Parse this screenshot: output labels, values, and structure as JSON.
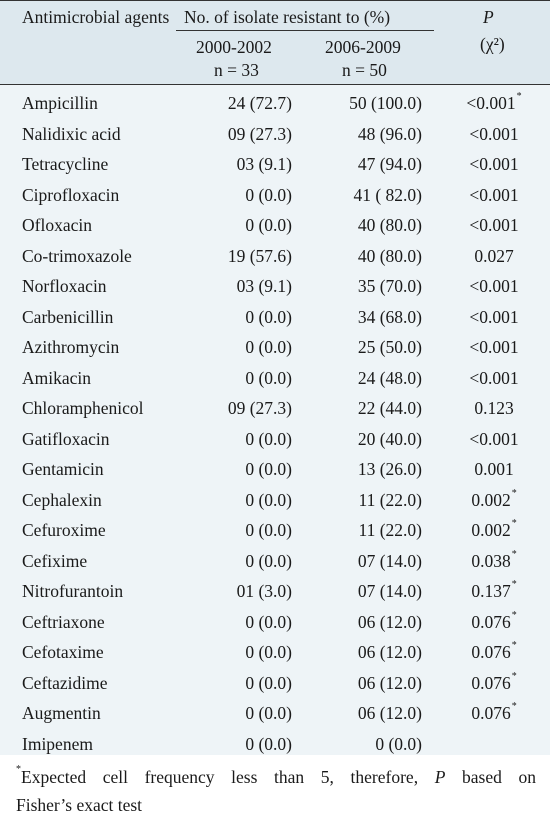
{
  "header": {
    "agent_label": "Antimicrobial agents",
    "group_label": "No. of isolate resistant to (%)",
    "p_label": "P",
    "chi_label": "(χ²)",
    "col1_period": "2000-2002",
    "col1_n": "n = 33",
    "col2_period": "2006-2009",
    "col2_n": "n = 50"
  },
  "rows": [
    {
      "agent": "Ampicillin",
      "v1": "24 (72.7)",
      "v2": "50 (100.0)",
      "p": "<0.001",
      "star": "*"
    },
    {
      "agent": "Nalidixic acid",
      "v1": "09 (27.3)",
      "v2": "48 (96.0)",
      "p": "<0.001",
      "star": ""
    },
    {
      "agent": "Tetracycline",
      "v1": "03 (9.1)",
      "v2": "47 (94.0)",
      "p": "<0.001",
      "star": ""
    },
    {
      "agent": "Ciprofloxacin",
      "v1": "0 (0.0)",
      "v2": "41 ( 82.0)",
      "p": "<0.001",
      "star": ""
    },
    {
      "agent": "Ofloxacin",
      "v1": "0 (0.0)",
      "v2": "40 (80.0)",
      "p": "<0.001",
      "star": ""
    },
    {
      "agent": "Co-trimoxazole",
      "v1": "19 (57.6)",
      "v2": "40 (80.0)",
      "p": "0.027",
      "star": ""
    },
    {
      "agent": "Norfloxacin",
      "v1": "03 (9.1)",
      "v2": "35 (70.0)",
      "p": "<0.001",
      "star": ""
    },
    {
      "agent": "Carbenicillin",
      "v1": "0 (0.0)",
      "v2": "34 (68.0)",
      "p": "<0.001",
      "star": ""
    },
    {
      "agent": "Azithromycin",
      "v1": "0 (0.0)",
      "v2": "25 (50.0)",
      "p": "<0.001",
      "star": ""
    },
    {
      "agent": "Amikacin",
      "v1": "0 (0.0)",
      "v2": "24 (48.0)",
      "p": "<0.001",
      "star": ""
    },
    {
      "agent": "Chloramphenicol",
      "v1": "09 (27.3)",
      "v2": "22 (44.0)",
      "p": "0.123",
      "star": ""
    },
    {
      "agent": "Gatifloxacin",
      "v1": "0 (0.0)",
      "v2": "20 (40.0)",
      "p": "<0.001",
      "star": ""
    },
    {
      "agent": "Gentamicin",
      "v1": "0 (0.0)",
      "v2": "13 (26.0)",
      "p": "0.001",
      "star": ""
    },
    {
      "agent": "Cephalexin",
      "v1": "0 (0.0)",
      "v2": "11 (22.0)",
      "p": "0.002",
      "star": "*"
    },
    {
      "agent": "Cefuroxime",
      "v1": "0 (0.0)",
      "v2": "11 (22.0)",
      "p": "0.002",
      "star": "*"
    },
    {
      "agent": "Cefixime",
      "v1": "0 (0.0)",
      "v2": "07 (14.0)",
      "p": "0.038",
      "star": "*"
    },
    {
      "agent": "Nitrofurantoin",
      "v1": "01 (3.0)",
      "v2": "07 (14.0)",
      "p": "0.137",
      "star": "*"
    },
    {
      "agent": "Ceftriaxone",
      "v1": "0 (0.0)",
      "v2": "06 (12.0)",
      "p": "0.076",
      "star": "*"
    },
    {
      "agent": "Cefotaxime",
      "v1": "0 (0.0)",
      "v2": "06 (12.0)",
      "p": "0.076",
      "star": "*"
    },
    {
      "agent": "Ceftazidime",
      "v1": "0 (0.0)",
      "v2": "06 (12.0)",
      "p": "0.076",
      "star": "*"
    },
    {
      "agent": "Augmentin",
      "v1": "0 (0.0)",
      "v2": "06 (12.0)",
      "p": "0.076",
      "star": "*"
    },
    {
      "agent": "Imipenem",
      "v1": "0 (0.0)",
      "v2": "0 (0.0)",
      "p": "",
      "star": ""
    }
  ],
  "footnote": {
    "marker": "*",
    "line1": "Expected cell frequency less than 5, therefore,",
    "p_symbol": "P",
    "line1_end": "based on",
    "line2": "Fisher’s exact test"
  },
  "colors": {
    "header_bg": "#dde8ee",
    "body_bg": "#eef4f7",
    "rule": "#333333",
    "text": "#1a1a1a"
  }
}
